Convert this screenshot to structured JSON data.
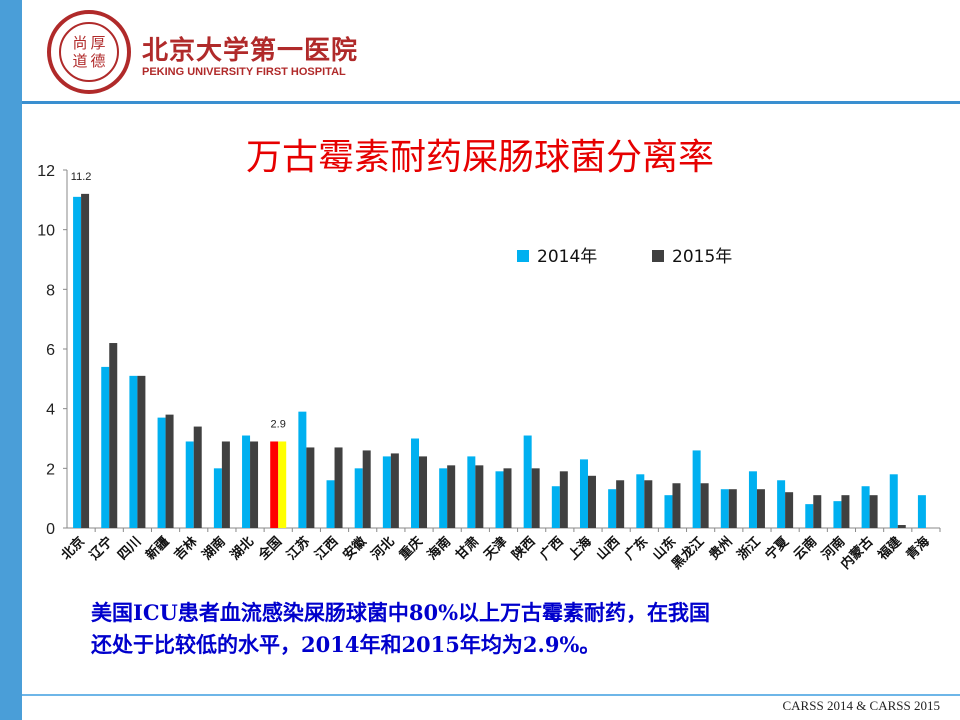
{
  "header": {
    "seal_chars": [
      "尚",
      "厚",
      "道",
      "德"
    ],
    "hospital_name_cn": "北京大学第一医院",
    "hospital_name_en": "PEKING UNIVERSITY FIRST HOSPITAL"
  },
  "summary": {
    "line1": "美国ICU患者血流感染屎肠球菌中80%以上万古霉素耐药，在我国",
    "line2": "还处于比较低的水平，2014年和2015年均为2.9%。"
  },
  "source": "CARSS 2014 & CARSS 2015",
  "colors": {
    "series_2014": "#00b0f0",
    "series_2015": "#404040",
    "national_2014": "#ff0000",
    "national_2015": "#ffff00",
    "title": "#e60000",
    "summary": "#0000cc"
  },
  "chart_data": {
    "type": "bar",
    "title": "万古霉素耐药屎肠球菌分离率",
    "xlabel": "",
    "ylabel": "",
    "ylim": [
      0,
      12
    ],
    "yticks": [
      "0",
      "2",
      "4",
      "6",
      "8",
      "10",
      "12"
    ],
    "grid": false,
    "legend_position": "top-right",
    "categories": [
      "北京",
      "辽宁",
      "四川",
      "新疆",
      "吉林",
      "湖南",
      "湖北",
      "全国",
      "江苏",
      "江西",
      "安徽",
      "河北",
      "重庆",
      "海南",
      "甘肃",
      "天津",
      "陕西",
      "广西",
      "上海",
      "山西",
      "广东",
      "山东",
      "黑龙江",
      "贵州",
      "浙江",
      "宁夏",
      "云南",
      "河南",
      "内蒙古",
      "福建",
      "青海"
    ],
    "series": [
      {
        "name": "2014年",
        "values": [
          11.1,
          5.4,
          5.1,
          3.7,
          2.9,
          2.0,
          3.1,
          2.9,
          3.9,
          1.6,
          2.0,
          2.4,
          3.0,
          2.0,
          2.4,
          1.9,
          3.1,
          1.4,
          2.3,
          1.3,
          1.8,
          1.1,
          2.6,
          1.3,
          1.9,
          1.6,
          0.8,
          0.9,
          1.4,
          1.8,
          1.1
        ]
      },
      {
        "name": "2015年",
        "values": [
          11.2,
          6.2,
          5.1,
          3.8,
          3.4,
          2.9,
          2.9,
          2.9,
          2.7,
          2.7,
          2.6,
          2.5,
          2.4,
          2.1,
          2.1,
          2.0,
          2.0,
          1.9,
          1.75,
          1.6,
          1.6,
          1.5,
          1.5,
          1.3,
          1.3,
          1.2,
          1.1,
          1.1,
          1.1,
          0.1,
          null
        ]
      }
    ],
    "data_labels": [
      {
        "category": "北京",
        "text": "11.2"
      },
      {
        "category": "全国",
        "text": "2.9"
      }
    ]
  }
}
